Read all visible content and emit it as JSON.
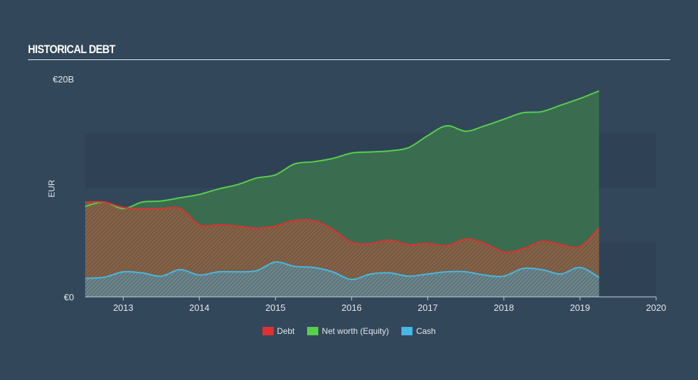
{
  "title": "HISTORICAL DEBT",
  "chart_data": {
    "type": "area",
    "title": "HISTORICAL DEBT",
    "ylabel": "EUR",
    "xlabel": "",
    "ylim": [
      0,
      20
    ],
    "y_unit": "billion EUR",
    "y_tick_labels": [
      {
        "value": 0,
        "label": "€0"
      },
      {
        "value": 20,
        "label": "€20B"
      }
    ],
    "x_ticks": [
      2013,
      2014,
      2015,
      2016,
      2017,
      2018,
      2019,
      2020
    ],
    "xlim": [
      2012.5,
      2020.0
    ],
    "grid": "horizontal bands",
    "legend_position": "bottom-center",
    "series": [
      {
        "name": "Debt",
        "color": "#e0302f",
        "x": [
          2012.5,
          2012.75,
          2013.0,
          2013.25,
          2013.5,
          2013.75,
          2014.0,
          2014.25,
          2014.5,
          2014.75,
          2015.0,
          2015.25,
          2015.5,
          2015.75,
          2016.0,
          2016.25,
          2016.5,
          2016.75,
          2017.0,
          2017.25,
          2017.5,
          2017.75,
          2018.0,
          2018.25,
          2018.5,
          2018.75,
          2019.0,
          2019.25
        ],
        "values": [
          8.7,
          8.7,
          8.2,
          8.1,
          8.1,
          8.1,
          6.6,
          6.6,
          6.5,
          6.3,
          6.5,
          7.0,
          7.0,
          6.2,
          5.0,
          4.9,
          5.2,
          4.8,
          4.9,
          4.7,
          5.3,
          4.9,
          4.1,
          4.4,
          5.1,
          4.8,
          4.6,
          6.3
        ]
      },
      {
        "name": "Net worth (Equity)",
        "color": "#56d04a",
        "x": [
          2012.5,
          2012.75,
          2013.0,
          2013.25,
          2013.5,
          2013.75,
          2014.0,
          2014.25,
          2014.5,
          2014.75,
          2015.0,
          2015.25,
          2015.5,
          2015.75,
          2016.0,
          2016.25,
          2016.5,
          2016.75,
          2017.0,
          2017.25,
          2017.5,
          2017.75,
          2018.0,
          2018.25,
          2018.5,
          2018.75,
          2019.0,
          2019.25
        ],
        "values": [
          8.3,
          8.7,
          8.1,
          8.7,
          8.8,
          9.1,
          9.4,
          9.9,
          10.3,
          10.9,
          11.2,
          12.2,
          12.4,
          12.7,
          13.2,
          13.3,
          13.4,
          13.7,
          14.8,
          15.7,
          15.2,
          15.7,
          16.3,
          16.9,
          17.0,
          17.6,
          18.2,
          18.9
        ]
      },
      {
        "name": "Cash",
        "color": "#46b8e3",
        "x": [
          2012.5,
          2012.75,
          2013.0,
          2013.25,
          2013.5,
          2013.75,
          2014.0,
          2014.25,
          2014.5,
          2014.75,
          2015.0,
          2015.25,
          2015.5,
          2015.75,
          2016.0,
          2016.25,
          2016.5,
          2016.75,
          2017.0,
          2017.25,
          2017.5,
          2017.75,
          2018.0,
          2018.25,
          2018.5,
          2018.75,
          2019.0,
          2019.25
        ],
        "values": [
          1.7,
          1.8,
          2.3,
          2.2,
          1.9,
          2.5,
          2.0,
          2.3,
          2.3,
          2.4,
          3.2,
          2.8,
          2.7,
          2.3,
          1.6,
          2.1,
          2.2,
          1.9,
          2.1,
          2.3,
          2.3,
          2.0,
          1.9,
          2.6,
          2.5,
          2.1,
          2.7,
          1.8
        ]
      }
    ]
  }
}
